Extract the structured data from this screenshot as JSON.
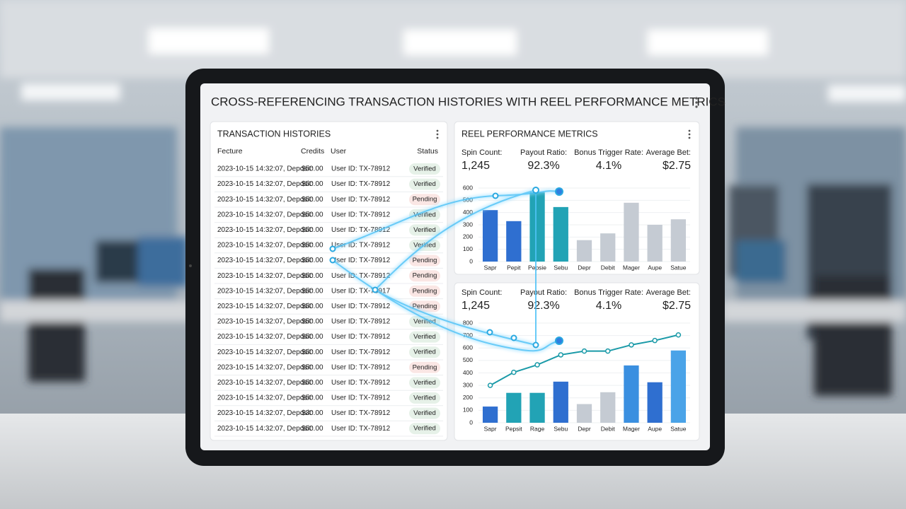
{
  "title": "CROSS-REFERENCING TRANSACTION HISTORIES WITH REEL PERFORMANCE METRICS",
  "transactions": {
    "title": "TRANSACTION HISTORIES",
    "headers": [
      "Fecture",
      "Credits",
      "User",
      "Status"
    ],
    "rows": [
      {
        "time": "2023-10-15 14:32:07, Deposit:",
        "amount": "$50.00",
        "amount_color": "#d93025",
        "user": "User ID: TX-78912",
        "status": "Verified",
        "status_color": "#2e8b3e"
      },
      {
        "time": "2023-10-15 14:32:07, Deposit:",
        "amount": "$50.00",
        "amount_color": "#d93025",
        "user": "User ID: TX-78912",
        "status": "Verified",
        "status_color": "#2e8b3e"
      },
      {
        "time": "2023-10-15 14:32:07, Deposit:",
        "amount": "$50.00",
        "amount_color": "#2e8b3e",
        "user": "User ID: TX-78912",
        "status": "Pending",
        "status_color": "#d93025"
      },
      {
        "time": "2023-10-15 14:32:07, Deposit:",
        "amount": "$50.00",
        "amount_color": "#2e8b3e",
        "user": "User ID: TX-78912",
        "status": "Verified",
        "status_color": "#2e8b3e"
      },
      {
        "time": "2023-10-15 14:32:07, Deposit:",
        "amount": "$50.00",
        "amount_color": "#2e8b3e",
        "user": "User ID: TX-78912",
        "status": "Verified",
        "status_color": "#2e8b3e"
      },
      {
        "time": "2023-10-15 14:32:07, Deposit:",
        "amount": "$50.00",
        "amount_color": "#d93025",
        "user": "User ID: TX-78912",
        "status": "Verified",
        "status_color": "#2e8b3e"
      },
      {
        "time": "2023-10-15 14:32:07, Deposit:",
        "amount": "$50.00",
        "amount_color": "#d93025",
        "user": "User ID: TX-78912",
        "status": "Pending",
        "status_color": "#d93025"
      },
      {
        "time": "2023-10-15 14:32:07, Deposit:",
        "amount": "$50.00",
        "amount_color": "#2e8b3e",
        "user": "User ID: TX-78912",
        "status": "Pending",
        "status_color": "#d93025"
      },
      {
        "time": "2023-10-15 14:32:07, Deposit:",
        "amount": "$50.00",
        "amount_color": "#d93025",
        "user": "User ID: TX-78917",
        "status": "Pending",
        "status_color": "#d93025"
      },
      {
        "time": "2023-10-15 14:32:07, Deposit:",
        "amount": "$50.00",
        "amount_color": "#d93025",
        "user": "User ID: TX-78912",
        "status": "Pending",
        "status_color": "#d93025"
      },
      {
        "time": "2023-10-15 14:32:07, Deposit:",
        "amount": "$50.00",
        "amount_color": "#2e8b3e",
        "user": "User ID: TX-78912",
        "status": "Verified",
        "status_color": "#2e8b3e"
      },
      {
        "time": "2023-10-15 14:32:07, Deposit:",
        "amount": "$50.00",
        "amount_color": "#2e8b3e",
        "user": "User ID: TX-78912",
        "status": "Verified",
        "status_color": "#2e8b3e"
      },
      {
        "time": "2023-10-15 14:32:07, Deposit:",
        "amount": "$50.00",
        "amount_color": "#d93025",
        "user": "User ID: TX-78912",
        "status": "Verified",
        "status_color": "#2e8b3e"
      },
      {
        "time": "2023-10-15 14:32:07, Deposit:",
        "amount": "$50.00",
        "amount_color": "#2e8b3e",
        "user": "User ID: TX-78912",
        "status": "Pending",
        "status_color": "#d93025"
      },
      {
        "time": "2023-10-15 14:32:07, Deposit:",
        "amount": "$50.00",
        "amount_color": "#2e8b3e",
        "user": "User ID: TX-78912",
        "status": "Verified",
        "status_color": "#2e8b3e"
      },
      {
        "time": "2023-10-15 14:32:07, Deposit:",
        "amount": "$50.00",
        "amount_color": "#d93025",
        "user": "User ID: TX-78912",
        "status": "Verified",
        "status_color": "#2e8b3e"
      },
      {
        "time": "2023-10-15 14:32:07, Deposit:",
        "amount": "$30.00",
        "amount_color": "#2e8b3e",
        "user": "User ID: TX-78912",
        "status": "Verified",
        "status_color": "#2e8b3e"
      },
      {
        "time": "2023-10-15 14:32:07, Deposit:",
        "amount": "$50.00",
        "amount_color": "#2e8b3e",
        "user": "User ID: TX-78912",
        "status": "Verified",
        "status_color": "#2e8b3e"
      }
    ]
  },
  "reel": {
    "title": "REEL PERFORMANCE METRICS",
    "panels": [
      {
        "metrics": [
          {
            "label": "Spin Count:",
            "value": "1,245"
          },
          {
            "label": "Payout Ratio:",
            "value": "92.3%"
          },
          {
            "label": "Bonus Trigger Rate:",
            "value": "4.1%"
          },
          {
            "label": "Average Bet:",
            "value": "$2.75"
          }
        ]
      },
      {
        "metrics": [
          {
            "label": "Spin Count:",
            "value": "1,245"
          },
          {
            "label": "Payout Ratio:",
            "value": "92.3%"
          },
          {
            "label": "Bonus Trigger Rate:",
            "value": "4.1%"
          },
          {
            "label": "Average Bet:",
            "value": "$2.75"
          }
        ]
      }
    ]
  },
  "chart_data": [
    {
      "type": "bar",
      "categories": [
        "Sapr",
        "Pepit",
        "Pepsie",
        "Sebu",
        "Depr",
        "Debit",
        "Mager",
        "Aupe",
        "Satue"
      ],
      "values": [
        420,
        330,
        565,
        445,
        175,
        230,
        480,
        300,
        345
      ],
      "colors": [
        "#2f6fd0",
        "#2f6fd0",
        "#22a3b5",
        "#22a3b5",
        "#c5cbd3",
        "#c5cbd3",
        "#c5cbd3",
        "#c5cbd3",
        "#c5cbd3"
      ],
      "ylim": [
        0,
        600
      ],
      "yticks": [
        0,
        100,
        200,
        300,
        400,
        500,
        600
      ]
    },
    {
      "type": "combo",
      "categories": [
        "Sapr",
        "Pepsit",
        "Rage",
        "Sebu",
        "Depr",
        "Debit",
        "Mager",
        "Aupe",
        "Satue"
      ],
      "values": [
        130,
        240,
        240,
        330,
        150,
        245,
        460,
        325,
        580
      ],
      "colors": [
        "#2f6fd0",
        "#22a3b5",
        "#22a3b5",
        "#2f6fd0",
        "#c5cbd3",
        "#c5cbd3",
        "#3a8fe0",
        "#2f6fd0",
        "#4aa3e8"
      ],
      "line": {
        "color": "#1a9aa8",
        "values": [
          300,
          405,
          465,
          545,
          575,
          575,
          625,
          660,
          705
        ]
      },
      "ylim": [
        0,
        800
      ],
      "yticks": [
        0,
        100,
        200,
        300,
        400,
        500,
        600,
        700,
        800
      ]
    }
  ]
}
